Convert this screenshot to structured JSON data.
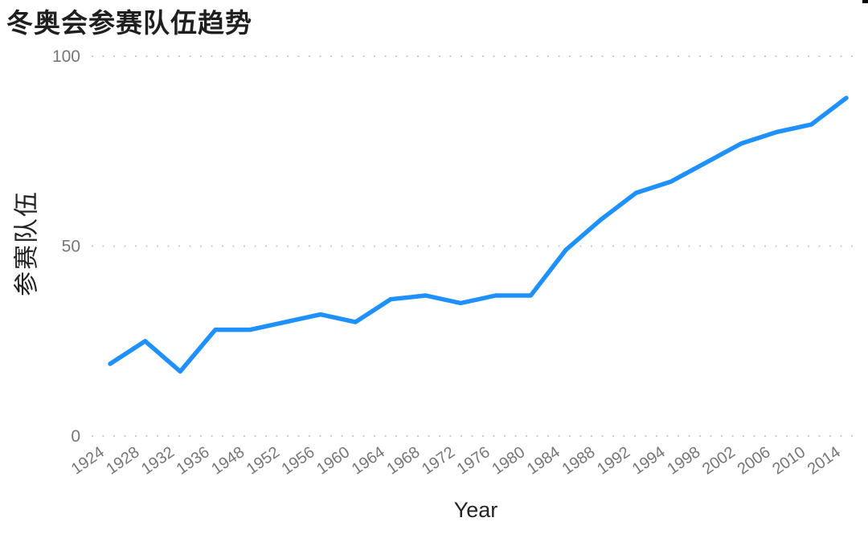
{
  "title": "冬奥会参赛队伍趋势",
  "chart_data": {
    "type": "line",
    "title": "冬奥会参赛队伍趋势",
    "xlabel": "Year",
    "ylabel": "参赛队伍",
    "categories": [
      "1924",
      "1928",
      "1932",
      "1936",
      "1948",
      "1952",
      "1956",
      "1960",
      "1964",
      "1968",
      "1972",
      "1976",
      "1980",
      "1984",
      "1988",
      "1992",
      "1994",
      "1998",
      "2002",
      "2006",
      "2010",
      "2014"
    ],
    "values": [
      19,
      25,
      17,
      28,
      28,
      30,
      32,
      30,
      36,
      37,
      35,
      37,
      37,
      49,
      57,
      64,
      67,
      72,
      77,
      80,
      82,
      89
    ],
    "series": [
      {
        "name": "参赛队伍",
        "values": [
          19,
          25,
          17,
          28,
          28,
          30,
          32,
          30,
          36,
          37,
          35,
          37,
          37,
          49,
          57,
          64,
          67,
          72,
          77,
          80,
          82,
          89
        ]
      }
    ],
    "y_ticks": [
      0,
      50,
      100
    ],
    "ylim": [
      0,
      100
    ],
    "grid": "horizontal-dotted",
    "legend": "none"
  },
  "colors": {
    "line": "#1E90FF",
    "gridline": "#CBCBCB",
    "tick_label": "#777777",
    "axis_title": "#252423",
    "chart_title": "#1F1F1F",
    "background": "#FFFFFF"
  }
}
